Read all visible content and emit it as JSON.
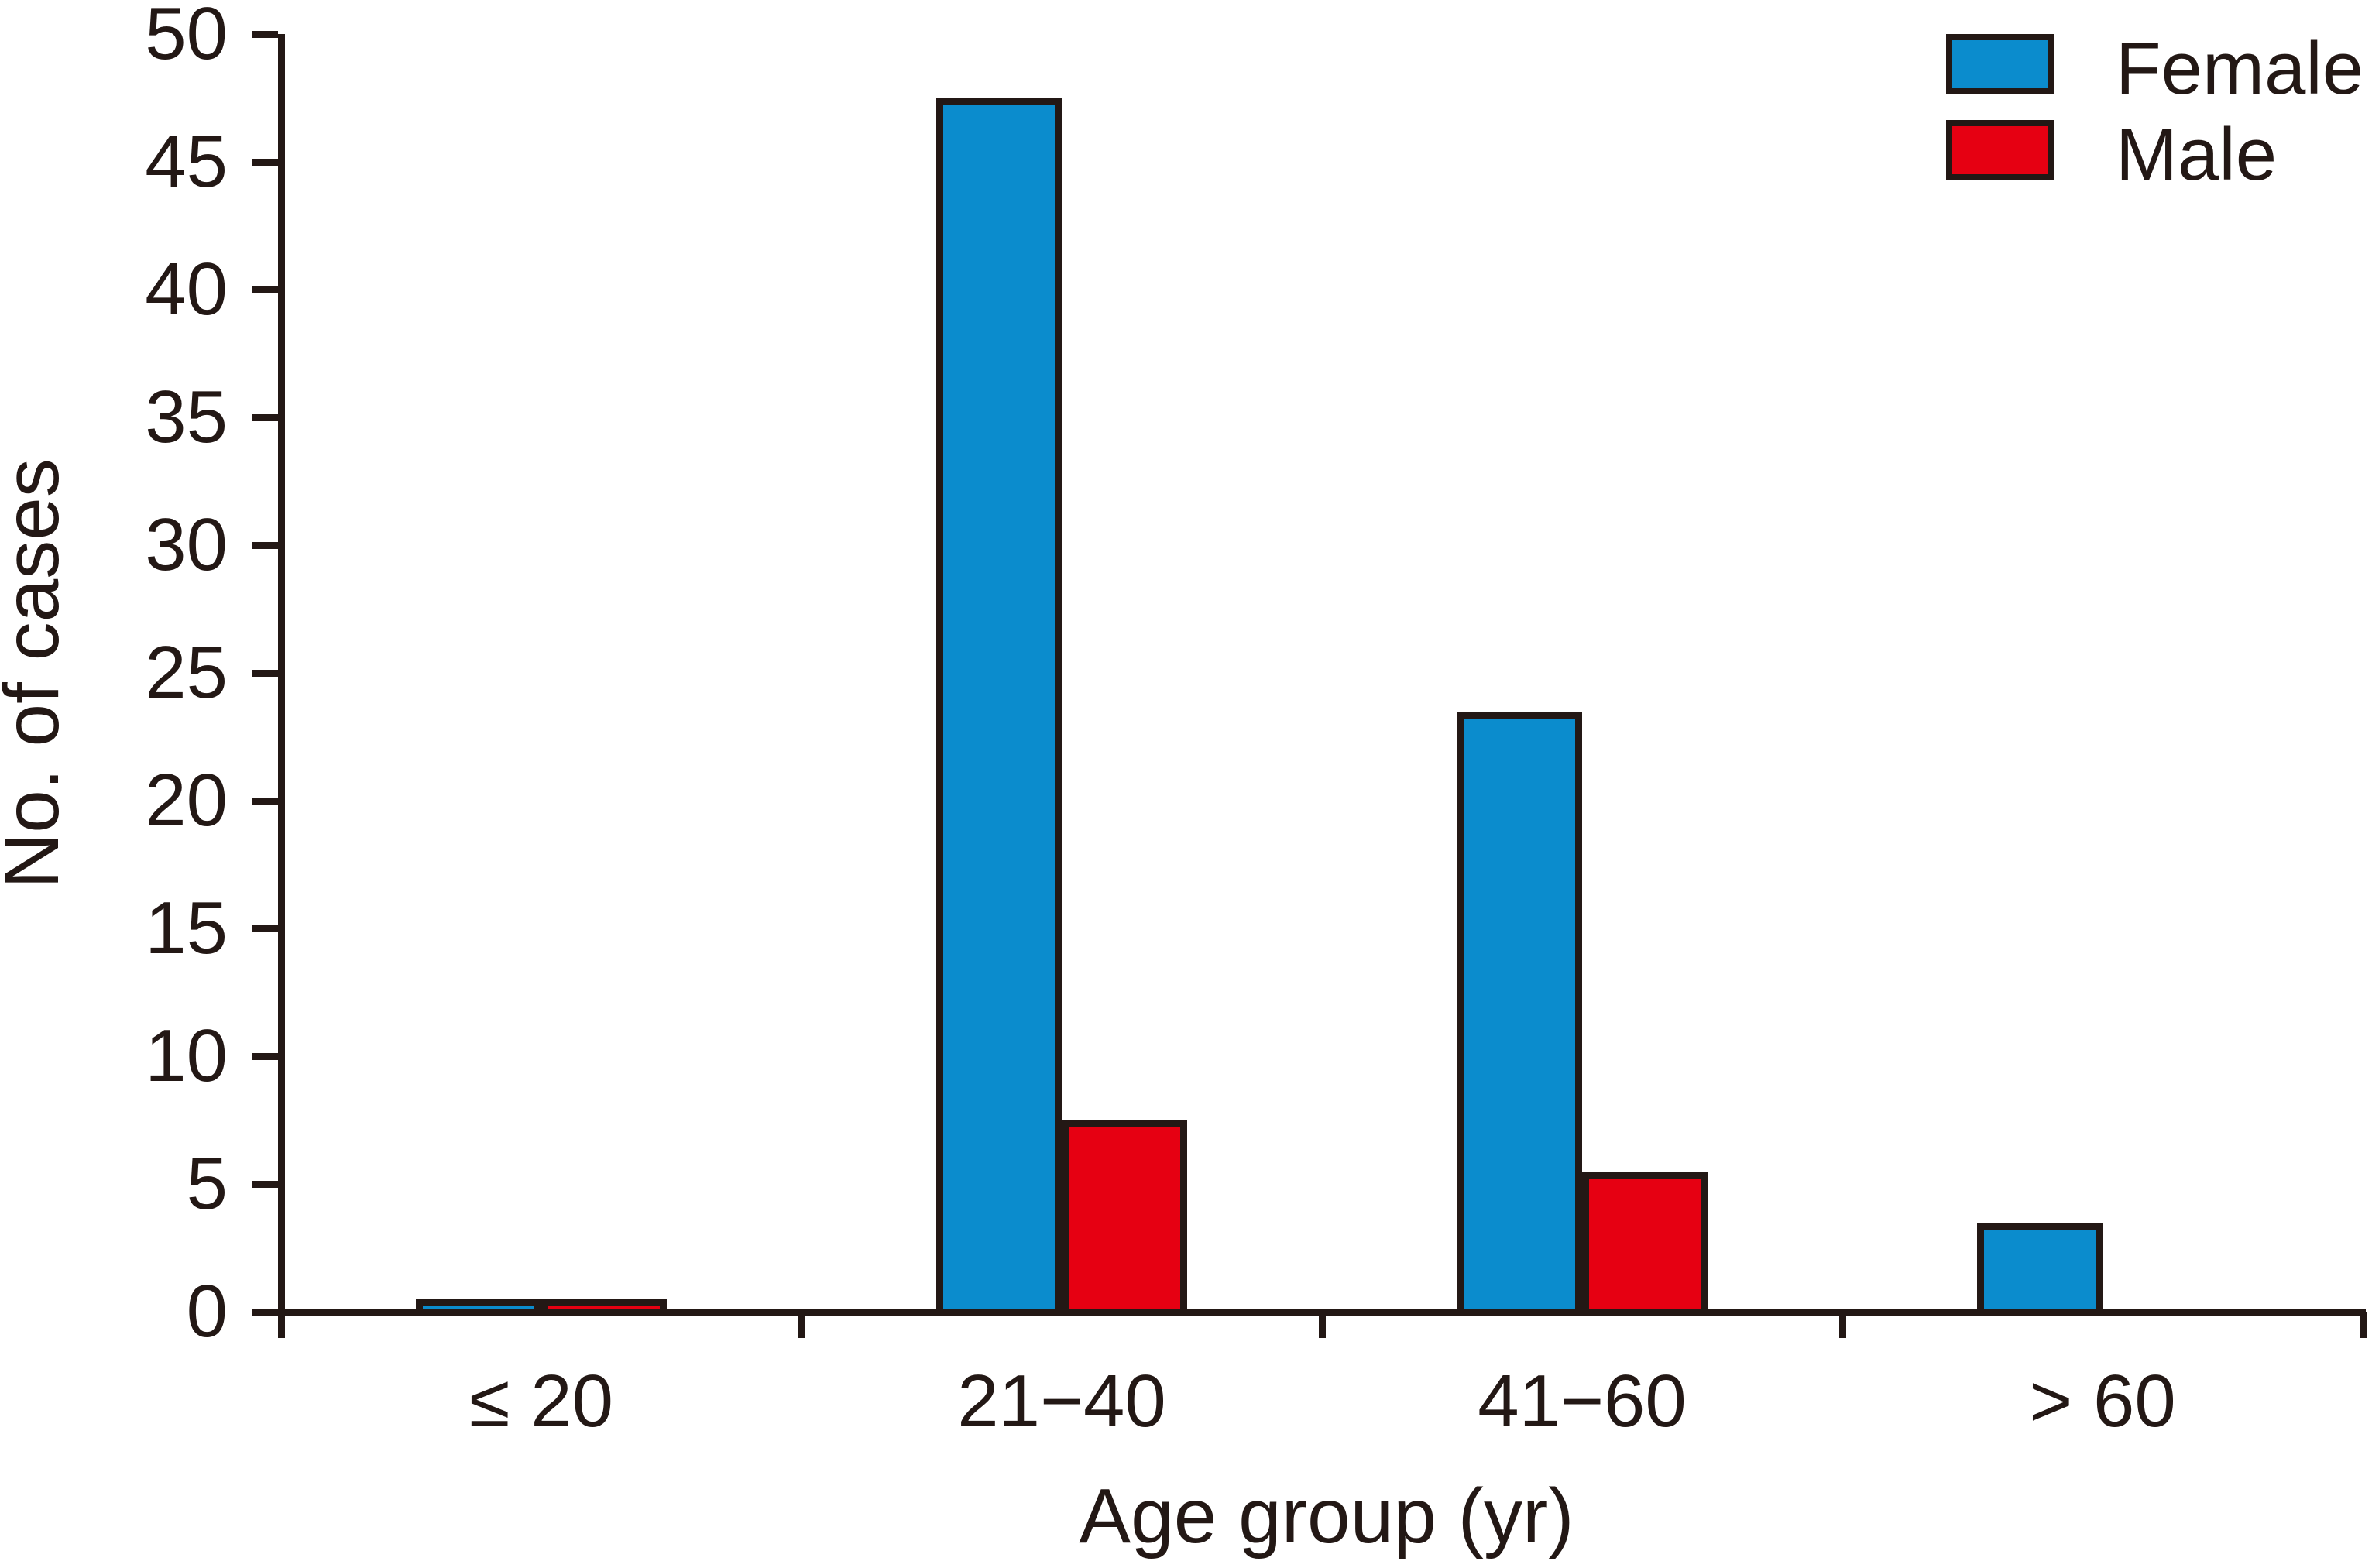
{
  "chart_data": {
    "type": "bar",
    "title": "",
    "categories": [
      "≤ 20",
      "21−40",
      "41−60",
      "> 60"
    ],
    "series": [
      {
        "name": "Female",
        "color": "#0b8ccd",
        "values": [
          0.5,
          47.5,
          23.5,
          3.5
        ]
      },
      {
        "name": "Male",
        "color": "#e60012",
        "values": [
          0.5,
          7.5,
          5.5,
          0.1
        ]
      }
    ],
    "xlabel": "Age group (yr)",
    "ylabel": "No. of cases",
    "ylim": [
      0,
      50
    ],
    "yticks": [
      0,
      5,
      10,
      15,
      20,
      25,
      30,
      35,
      40,
      45,
      50
    ],
    "grid": false,
    "legend_position": "top-right",
    "bar_outline_color": "#231815",
    "axis_color": "#231815"
  },
  "axes": {
    "x_title": "Age group (yr)",
    "y_title": "No. of cases"
  },
  "legend": {
    "items": [
      {
        "label": "Female",
        "color": "#0b8ccd"
      },
      {
        "label": "Male",
        "color": "#e60012"
      }
    ]
  }
}
